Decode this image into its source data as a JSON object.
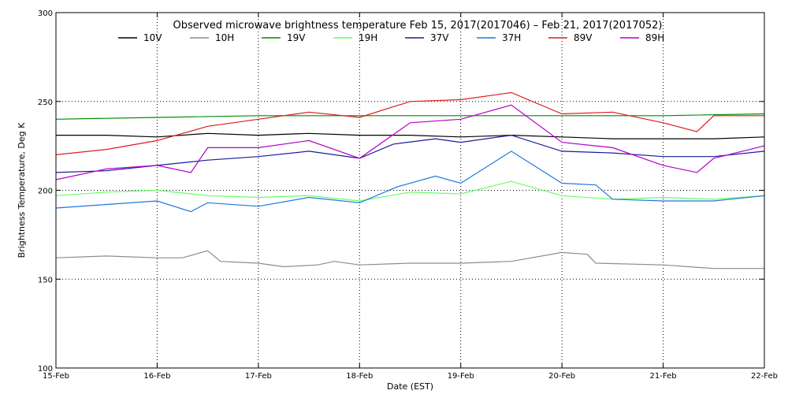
{
  "chart_data": {
    "type": "line",
    "title": "Observed microwave brightness temperature Feb 15, 2017(2017046) – Feb 21, 2017(2017052)",
    "xlabel": "Date (EST)",
    "ylabel": "Brightness Temperature, Deg K",
    "xlim": [
      "2017-02-15",
      "2017-02-22"
    ],
    "ylim": [
      100,
      300
    ],
    "x_ticks": [
      "15-Feb",
      "16-Feb",
      "17-Feb",
      "18-Feb",
      "19-Feb",
      "20-Feb",
      "21-Feb",
      "22-Feb"
    ],
    "y_ticks": [
      100,
      150,
      200,
      250,
      300
    ],
    "grid": "dotted lines at y=150, 200, 250 and at each day",
    "legend": "top, single row",
    "series": [
      {
        "name": "10V",
        "color": "#000000",
        "x": [
          "2017-02-15",
          "2017-02-15T12:00",
          "2017-02-16",
          "2017-02-16T12:00",
          "2017-02-17",
          "2017-02-17T12:00",
          "2017-02-18",
          "2017-02-18T12:00",
          "2017-02-19",
          "2017-02-19T12:00",
          "2017-02-20",
          "2017-02-20T12:00",
          "2017-02-21",
          "2017-02-21T12:00",
          "2017-02-22"
        ],
        "y": [
          231,
          231,
          230,
          232,
          231,
          232,
          231,
          231,
          230,
          231,
          230,
          229,
          229,
          229,
          230
        ]
      },
      {
        "name": "10H",
        "color": "#8c8c8c",
        "x": [
          "2017-02-15",
          "2017-02-15T12:00",
          "2017-02-16",
          "2017-02-16T06:00",
          "2017-02-16T12:00",
          "2017-02-16T15:00",
          "2017-02-17",
          "2017-02-17T06:00",
          "2017-02-17T14:00",
          "2017-02-17T18:00",
          "2017-02-18",
          "2017-02-18T12:00",
          "2017-02-19",
          "2017-02-19T12:00",
          "2017-02-20",
          "2017-02-20T06:00",
          "2017-02-20T08:00",
          "2017-02-21",
          "2017-02-21T12:00",
          "2017-02-22"
        ],
        "y": [
          162,
          163,
          162,
          162,
          166,
          160,
          159,
          157,
          158,
          160,
          158,
          159,
          159,
          160,
          165,
          164,
          159,
          158,
          156,
          156
        ]
      },
      {
        "name": "19V",
        "color": "#008c00",
        "x": [
          "2017-02-15",
          "2017-02-16",
          "2017-02-17",
          "2017-02-18",
          "2017-02-19",
          "2017-02-20",
          "2017-02-21",
          "2017-02-22"
        ],
        "y": [
          240,
          241,
          242,
          242,
          242,
          242,
          242,
          243
        ]
      },
      {
        "name": "19H",
        "color": "#66ff66",
        "x": [
          "2017-02-15",
          "2017-02-15T12:00",
          "2017-02-16",
          "2017-02-16T12:00",
          "2017-02-17",
          "2017-02-17T12:00",
          "2017-02-18",
          "2017-02-18T12:00",
          "2017-02-19",
          "2017-02-19T12:00",
          "2017-02-20",
          "2017-02-20T12:00",
          "2017-02-21",
          "2017-02-21T12:00",
          "2017-02-22"
        ],
        "y": [
          197,
          199,
          200,
          197,
          196,
          197,
          194,
          199,
          198,
          205,
          197,
          195,
          196,
          195,
          197
        ]
      },
      {
        "name": "37V",
        "color": "#1a1aa0",
        "x": [
          "2017-02-15",
          "2017-02-15T12:00",
          "2017-02-16",
          "2017-02-16T12:00",
          "2017-02-17",
          "2017-02-17T12:00",
          "2017-02-18",
          "2017-02-18T08:00",
          "2017-02-18T18:00",
          "2017-02-19",
          "2017-02-19T12:00",
          "2017-02-20",
          "2017-02-20T12:00",
          "2017-02-21",
          "2017-02-21T12:00",
          "2017-02-22"
        ],
        "y": [
          210,
          211,
          214,
          217,
          219,
          222,
          218,
          226,
          229,
          227,
          231,
          222,
          221,
          219,
          219,
          222
        ]
      },
      {
        "name": "37H",
        "color": "#1e78dc",
        "x": [
          "2017-02-15",
          "2017-02-15T12:00",
          "2017-02-16",
          "2017-02-16T08:00",
          "2017-02-16T12:00",
          "2017-02-17",
          "2017-02-17T12:00",
          "2017-02-18",
          "2017-02-18T09:00",
          "2017-02-18T18:00",
          "2017-02-19",
          "2017-02-19T12:00",
          "2017-02-20",
          "2017-02-20T08:00",
          "2017-02-20T12:00",
          "2017-02-21",
          "2017-02-21T12:00",
          "2017-02-22"
        ],
        "y": [
          190,
          192,
          194,
          188,
          193,
          191,
          196,
          193,
          202,
          208,
          204,
          222,
          204,
          203,
          195,
          194,
          194,
          197
        ]
      },
      {
        "name": "89V",
        "color": "#dc1e1e",
        "x": [
          "2017-02-15",
          "2017-02-15T12:00",
          "2017-02-16",
          "2017-02-16T12:00",
          "2017-02-17",
          "2017-02-17T12:00",
          "2017-02-18",
          "2017-02-18T12:00",
          "2017-02-19",
          "2017-02-19T12:00",
          "2017-02-20",
          "2017-02-20T12:00",
          "2017-02-21",
          "2017-02-21T08:00",
          "2017-02-21T12:00",
          "2017-02-22"
        ],
        "y": [
          220,
          223,
          228,
          236,
          240,
          244,
          241,
          250,
          251,
          255,
          243,
          244,
          238,
          233,
          242,
          242
        ]
      },
      {
        "name": "89H",
        "color": "#b400c8",
        "x": [
          "2017-02-15",
          "2017-02-15T12:00",
          "2017-02-16",
          "2017-02-16T08:00",
          "2017-02-16T12:00",
          "2017-02-17",
          "2017-02-17T12:00",
          "2017-02-18",
          "2017-02-18T12:00",
          "2017-02-19",
          "2017-02-19T12:00",
          "2017-02-20",
          "2017-02-20T12:00",
          "2017-02-21",
          "2017-02-21T08:00",
          "2017-02-21T12:00",
          "2017-02-22"
        ],
        "y": [
          206,
          212,
          214,
          210,
          224,
          224,
          228,
          218,
          238,
          240,
          248,
          227,
          224,
          214,
          210,
          218,
          225
        ]
      }
    ]
  }
}
